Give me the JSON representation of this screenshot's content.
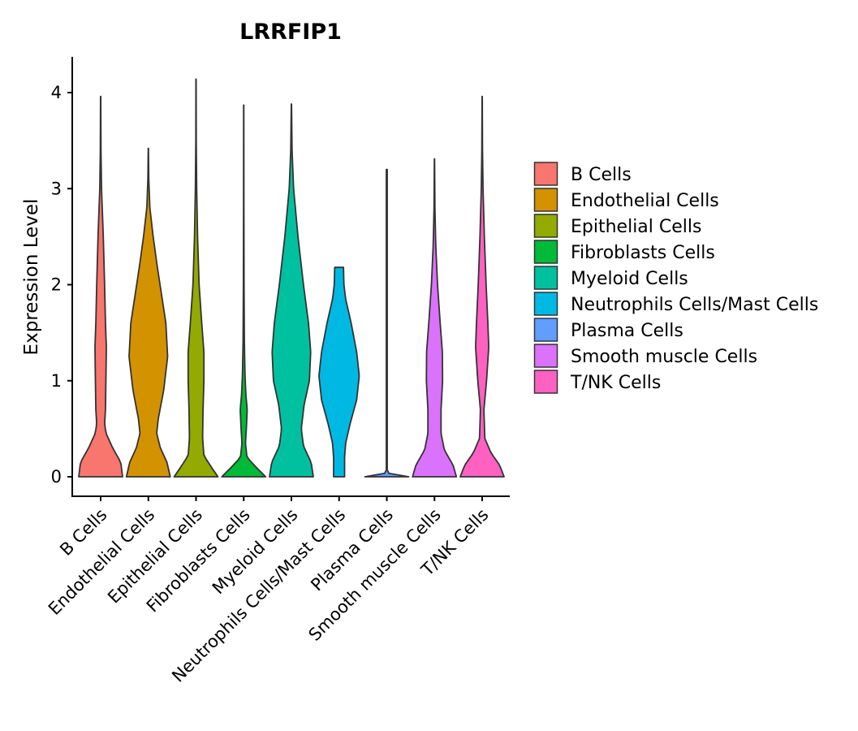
{
  "chart_data": {
    "type": "violin",
    "title": "LRRFIP1",
    "xlabel": "",
    "ylabel": "Expression Level",
    "ylim": [
      -0.2,
      4.35
    ],
    "yticks": [
      0,
      1,
      2,
      3,
      4
    ],
    "grid": false,
    "legend_position": "right",
    "categories": [
      "B Cells",
      "Endothelial Cells",
      "Epithelial Cells",
      "Fibroblasts Cells",
      "Myeloid Cells",
      "Neutrophils Cells/Mast Cells",
      "Plasma Cells",
      "Smooth muscle Cells",
      "T/NK Cells"
    ],
    "series": [
      {
        "name": "B Cells",
        "color": "#F8766D",
        "max": 3.96,
        "profile": [
          [
            0,
            1
          ],
          [
            0.15,
            0.92
          ],
          [
            0.3,
            0.55
          ],
          [
            0.45,
            0.25
          ],
          [
            0.55,
            0.18
          ],
          [
            0.7,
            0.22
          ],
          [
            1.0,
            0.24
          ],
          [
            1.35,
            0.26
          ],
          [
            1.6,
            0.22
          ],
          [
            2.0,
            0.18
          ],
          [
            2.5,
            0.12
          ],
          [
            3.0,
            0.04
          ],
          [
            3.4,
            0.015
          ],
          [
            3.96,
            0.005
          ]
        ]
      },
      {
        "name": "Endothelial Cells",
        "color": "#D39200",
        "max": 3.42,
        "profile": [
          [
            0,
            1
          ],
          [
            0.15,
            0.85
          ],
          [
            0.3,
            0.55
          ],
          [
            0.45,
            0.38
          ],
          [
            0.6,
            0.45
          ],
          [
            0.9,
            0.7
          ],
          [
            1.25,
            0.88
          ],
          [
            1.6,
            0.8
          ],
          [
            1.9,
            0.6
          ],
          [
            2.2,
            0.4
          ],
          [
            2.5,
            0.22
          ],
          [
            2.8,
            0.07
          ],
          [
            3.1,
            0.02
          ],
          [
            3.42,
            0.005
          ]
        ]
      },
      {
        "name": "Epithelial Cells",
        "color": "#93AA00",
        "max": 4.14,
        "profile": [
          [
            0,
            1
          ],
          [
            0.1,
            0.7
          ],
          [
            0.22,
            0.36
          ],
          [
            0.4,
            0.3
          ],
          [
            0.7,
            0.32
          ],
          [
            1.0,
            0.36
          ],
          [
            1.3,
            0.36
          ],
          [
            1.6,
            0.26
          ],
          [
            2.0,
            0.14
          ],
          [
            2.5,
            0.07
          ],
          [
            3.0,
            0.03
          ],
          [
            3.5,
            0.01
          ],
          [
            4.14,
            0.005
          ]
        ]
      },
      {
        "name": "Fibroblasts Cells",
        "color": "#00BA38",
        "max": 3.87,
        "profile": [
          [
            0,
            1
          ],
          [
            0.08,
            0.65
          ],
          [
            0.2,
            0.15
          ],
          [
            0.35,
            0.08
          ],
          [
            0.5,
            0.12
          ],
          [
            0.7,
            0.16
          ],
          [
            0.85,
            0.1
          ],
          [
            1.05,
            0.06
          ],
          [
            1.4,
            0.03
          ],
          [
            2.0,
            0.015
          ],
          [
            2.8,
            0.008
          ],
          [
            3.87,
            0.004
          ]
        ]
      },
      {
        "name": "Myeloid Cells",
        "color": "#00C19F",
        "max": 3.88,
        "profile": [
          [
            0,
            1
          ],
          [
            0.15,
            0.9
          ],
          [
            0.32,
            0.55
          ],
          [
            0.5,
            0.45
          ],
          [
            0.75,
            0.58
          ],
          [
            1.0,
            0.82
          ],
          [
            1.3,
            0.88
          ],
          [
            1.6,
            0.78
          ],
          [
            2.0,
            0.55
          ],
          [
            2.5,
            0.3
          ],
          [
            3.0,
            0.1
          ],
          [
            3.4,
            0.03
          ],
          [
            3.88,
            0.005
          ]
        ]
      },
      {
        "name": "Neutrophils Cells/Mast Cells",
        "color": "#00B9E3",
        "max": 2.18,
        "profile": [
          [
            0,
            0.25
          ],
          [
            0.2,
            0.25
          ],
          [
            0.35,
            0.3
          ],
          [
            0.55,
            0.5
          ],
          [
            0.8,
            0.8
          ],
          [
            1.05,
            0.92
          ],
          [
            1.3,
            0.8
          ],
          [
            1.6,
            0.55
          ],
          [
            1.85,
            0.3
          ],
          [
            2.0,
            0.22
          ],
          [
            2.18,
            0.2
          ]
        ]
      },
      {
        "name": "Plasma Cells",
        "color": "#619CFF",
        "max": 3.2,
        "profile": [
          [
            0,
            1
          ],
          [
            0.02,
            0.15
          ],
          [
            0.06,
            0.02
          ],
          [
            3.2,
            0.02
          ]
        ]
      },
      {
        "name": "Smooth muscle Cells",
        "color": "#DB72FB",
        "max": 3.31,
        "profile": [
          [
            0,
            1
          ],
          [
            0.12,
            0.85
          ],
          [
            0.28,
            0.45
          ],
          [
            0.45,
            0.3
          ],
          [
            0.7,
            0.3
          ],
          [
            1.0,
            0.37
          ],
          [
            1.3,
            0.36
          ],
          [
            1.6,
            0.26
          ],
          [
            2.0,
            0.14
          ],
          [
            2.4,
            0.06
          ],
          [
            2.8,
            0.02
          ],
          [
            3.31,
            0.005
          ]
        ]
      },
      {
        "name": "T/NK Cells",
        "color": "#FF61C3",
        "max": 3.96,
        "profile": [
          [
            0,
            1
          ],
          [
            0.12,
            0.8
          ],
          [
            0.25,
            0.4
          ],
          [
            0.4,
            0.12
          ],
          [
            0.7,
            0.08
          ],
          [
            1.0,
            0.2
          ],
          [
            1.35,
            0.3
          ],
          [
            1.6,
            0.26
          ],
          [
            2.0,
            0.18
          ],
          [
            2.5,
            0.1
          ],
          [
            3.0,
            0.04
          ],
          [
            3.4,
            0.015
          ],
          [
            3.96,
            0.005
          ]
        ]
      }
    ]
  }
}
